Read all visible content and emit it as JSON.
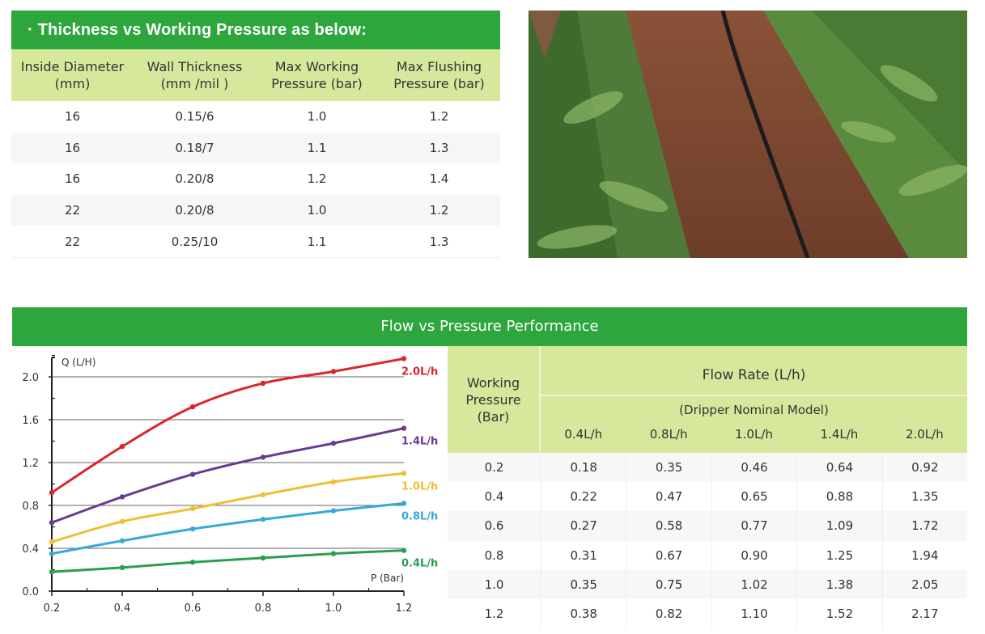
{
  "thickness_table": {
    "title": "· Thickness vs Working Pressure as below:",
    "headers": [
      [
        "Inside Diameter",
        "(mm)"
      ],
      [
        "Wall Thickness",
        "(mm /mil )"
      ],
      [
        "Max Working",
        "Pressure (bar)"
      ],
      [
        "Max Flushing",
        "Pressure (bar)"
      ]
    ],
    "rows": [
      [
        "16",
        "0.15/6",
        "1.0",
        "1.2"
      ],
      [
        "16",
        "0.18/7",
        "1.1",
        "1.3"
      ],
      [
        "16",
        "0.20/8",
        "1.2",
        "1.4"
      ],
      [
        "22",
        "0.20/8",
        "1.0",
        "1.2"
      ],
      [
        "22",
        "0.25/10",
        "1.1",
        "1.3"
      ]
    ]
  },
  "photo": {
    "subject": "drip-irrigation-line-in-corn-field"
  },
  "banner": {
    "title": "Flow vs Pressure Performance"
  },
  "chart_data": {
    "type": "line",
    "ylabel": "Q (L/H)",
    "xlabel": "P (Bar)",
    "x": [
      0.2,
      0.4,
      0.6,
      0.8,
      1.0,
      1.2
    ],
    "xlim": [
      0.2,
      1.2
    ],
    "ylim": [
      0,
      2.2
    ],
    "xticks": [
      "0.2",
      "0.4",
      "0.6",
      "0.8",
      "1.0",
      "1.2"
    ],
    "yticks": [
      "0.0",
      "0.4",
      "0.8",
      "1.2",
      "1.6",
      "2.0"
    ],
    "grid": "horizontal",
    "series": [
      {
        "name": "2.0L/h",
        "color": "#d9262b",
        "values": [
          0.92,
          1.35,
          1.72,
          1.94,
          2.05,
          2.17
        ]
      },
      {
        "name": "1.4L/h",
        "color": "#6b3b94",
        "values": [
          0.64,
          0.88,
          1.09,
          1.25,
          1.38,
          1.52
        ]
      },
      {
        "name": "1.0L/h",
        "color": "#f0bf36",
        "values": [
          0.46,
          0.65,
          0.77,
          0.9,
          1.02,
          1.1
        ]
      },
      {
        "name": "0.8L/h",
        "color": "#37a9d9",
        "values": [
          0.35,
          0.47,
          0.58,
          0.67,
          0.75,
          0.82
        ]
      },
      {
        "name": "0.4L/h",
        "color": "#2a9f4f",
        "values": [
          0.18,
          0.22,
          0.27,
          0.31,
          0.35,
          0.38
        ]
      }
    ]
  },
  "flow_table": {
    "pressure_header": [
      "Working",
      "Pressure",
      "(Bar)"
    ],
    "flow_header": "Flow Rate (L/h)",
    "model_header": "(Dripper Nominal Model)",
    "models": [
      "0.4L/h",
      "0.8L/h",
      "1.0L/h",
      "1.4L/h",
      "2.0L/h"
    ],
    "rows": [
      [
        "0.2",
        "0.18",
        "0.35",
        "0.46",
        "0.64",
        "0.92"
      ],
      [
        "0.4",
        "0.22",
        "0.47",
        "0.65",
        "0.88",
        "1.35"
      ],
      [
        "0.6",
        "0.27",
        "0.58",
        "0.77",
        "1.09",
        "1.72"
      ],
      [
        "0.8",
        "0.31",
        "0.67",
        "0.90",
        "1.25",
        "1.94"
      ],
      [
        "1.0",
        "0.35",
        "0.75",
        "1.02",
        "1.38",
        "2.05"
      ],
      [
        "1.2",
        "0.38",
        "0.82",
        "1.10",
        "1.52",
        "2.17"
      ]
    ]
  },
  "colors": {
    "brand_green": "#2ea63e",
    "header_lime": "#d6e89c"
  }
}
